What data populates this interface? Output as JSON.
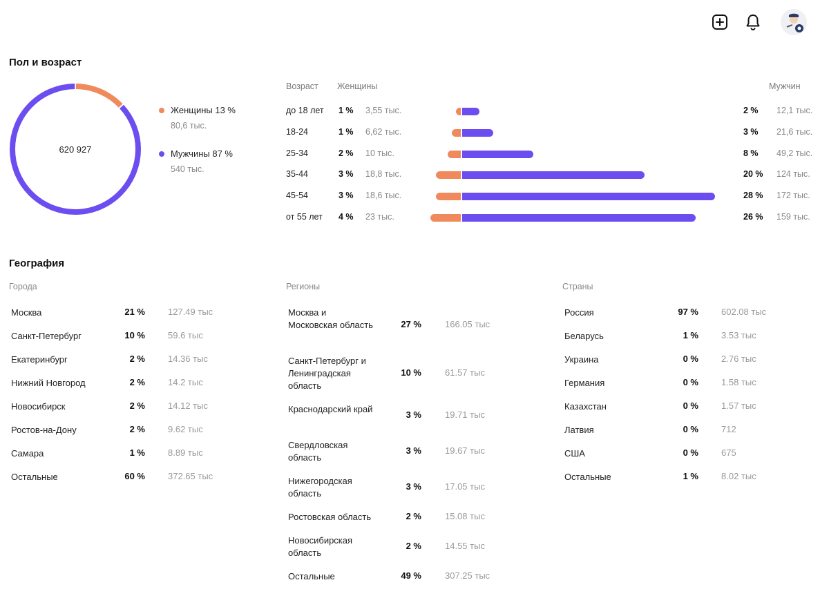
{
  "header": {
    "add_icon": "plus-square-icon",
    "bell_icon": "bell-icon",
    "avatar_icon": "avatar-icon"
  },
  "gender_age": {
    "title": "Пол и возраст",
    "total": "620 927",
    "colors": {
      "women": "#f08a5d",
      "men": "#6c4ef0"
    },
    "women": {
      "label": "Женщины 13 %",
      "count": "80,6 тыс.",
      "share": 13
    },
    "men": {
      "label": "Мужчины 87 %",
      "count": "540 тыс.",
      "share": 87
    },
    "age_table": {
      "col_age": "Возраст",
      "col_women": "Женщины",
      "col_men": "Мужчин",
      "rows": [
        {
          "age": "до 18 лет",
          "w_pct": "1 %",
          "w_val": "3,55 тыс.",
          "m_pct": "2 %",
          "m_val": "12,1 тыс.",
          "w_share": 0.6,
          "m_share": 2
        },
        {
          "age": "18-24",
          "w_pct": "1 %",
          "w_val": "6,62 тыс.",
          "m_pct": "3 %",
          "m_val": "21,6 тыс.",
          "w_share": 1.1,
          "m_share": 3.5
        },
        {
          "age": "25-34",
          "w_pct": "2 %",
          "w_val": "10 тыс.",
          "m_pct": "8 %",
          "m_val": "49,2 тыс.",
          "w_share": 1.6,
          "m_share": 7.9
        },
        {
          "age": "35-44",
          "w_pct": "3 %",
          "w_val": "18,8 тыс.",
          "m_pct": "20 %",
          "m_val": "124 тыс.",
          "w_share": 3,
          "m_share": 20
        },
        {
          "age": "45-54",
          "w_pct": "3 %",
          "w_val": "18,6 тыс.",
          "m_pct": "28 %",
          "m_val": "172 тыс.",
          "w_share": 3,
          "m_share": 27.7
        },
        {
          "age": "от 55 лет",
          "w_pct": "4 %",
          "w_val": "23 тыс.",
          "m_pct": "26 %",
          "m_val": "159 тыс.",
          "w_share": 3.7,
          "m_share": 25.6
        }
      ]
    }
  },
  "geography": {
    "title": "География",
    "cities": {
      "header": "Города",
      "rows": [
        {
          "name": "Москва",
          "pct": "21 %",
          "value": "127.49 тыс"
        },
        {
          "name": "Санкт-Петербург",
          "pct": "10 %",
          "value": "59.6 тыс"
        },
        {
          "name": "Екатеринбург",
          "pct": "2 %",
          "value": "14.36 тыс"
        },
        {
          "name": "Нижний Новгород",
          "pct": "2 %",
          "value": "14.2 тыс"
        },
        {
          "name": "Новосибирск",
          "pct": "2 %",
          "value": "14.12 тыс"
        },
        {
          "name": "Ростов-на-Дону",
          "pct": "2 %",
          "value": "9.62 тыс"
        },
        {
          "name": "Самара",
          "pct": "1 %",
          "value": "8.89 тыс"
        },
        {
          "name": "Остальные",
          "pct": "60 %",
          "value": "372.65 тыс"
        }
      ]
    },
    "regions": {
      "header": "Регионы",
      "rows": [
        {
          "name": "Москва и Московская область",
          "pct": "27 %",
          "value": "166.05 тыс"
        },
        {
          "name": "Санкт-Петербург и Ленинградская область",
          "pct": "10 %",
          "value": "61.57 тыс"
        },
        {
          "name": "Краснодарский край",
          "pct": "3 %",
          "value": "19.71 тыс"
        },
        {
          "name": "Свердловская область",
          "pct": "3 %",
          "value": "19.67 тыс"
        },
        {
          "name": "Нижегородская область",
          "pct": "3 %",
          "value": "17.05 тыс"
        },
        {
          "name": "Ростовская область",
          "pct": "2 %",
          "value": "15.08 тыс"
        },
        {
          "name": "Новосибирская область",
          "pct": "2 %",
          "value": "14.55 тыс"
        },
        {
          "name": "Остальные",
          "pct": "49 %",
          "value": "307.25 тыс"
        }
      ]
    },
    "countries": {
      "header": "Страны",
      "rows": [
        {
          "name": "Россия",
          "pct": "97 %",
          "value": "602.08 тыс"
        },
        {
          "name": "Беларусь",
          "pct": "1 %",
          "value": "3.53 тыс"
        },
        {
          "name": "Украина",
          "pct": "0 %",
          "value": "2.76 тыс"
        },
        {
          "name": "Германия",
          "pct": "0 %",
          "value": "1.58 тыс"
        },
        {
          "name": "Казахстан",
          "pct": "0 %",
          "value": "1.57 тыс"
        },
        {
          "name": "Латвия",
          "pct": "0 %",
          "value": "712"
        },
        {
          "name": "США",
          "pct": "0 %",
          "value": "675"
        },
        {
          "name": "Остальные",
          "pct": "1 %",
          "value": "8.02 тыс"
        }
      ]
    }
  }
}
